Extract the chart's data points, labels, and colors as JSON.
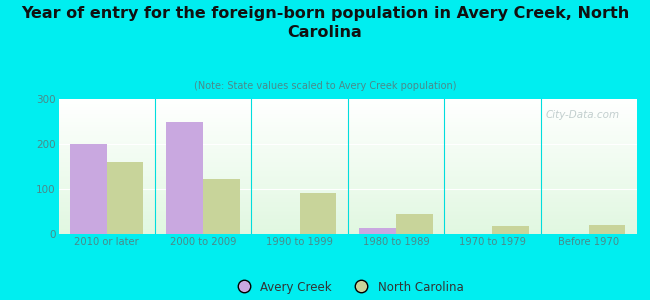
{
  "title": "Year of entry for the foreign-born population in Avery Creek, North\nCarolina",
  "subtitle": "(Note: State values scaled to Avery Creek population)",
  "categories": [
    "2010 or later",
    "2000 to 2009",
    "1990 to 1999",
    "1980 to 1989",
    "1970 to 1979",
    "Before 1970"
  ],
  "avery_creek": [
    200,
    248,
    0,
    13,
    0,
    0
  ],
  "north_carolina": [
    160,
    122,
    92,
    45,
    17,
    20
  ],
  "avery_color": "#c9a8e0",
  "nc_color": "#c8d49a",
  "background_color": "#00eef0",
  "ylim": [
    0,
    300
  ],
  "yticks": [
    0,
    100,
    200,
    300
  ],
  "bar_width": 0.38,
  "watermark": "City-Data.com",
  "legend_avery": "Avery Creek",
  "legend_nc": "North Carolina",
  "title_color": "#111111",
  "subtitle_color": "#4a8a8a",
  "tick_color": "#4a8a8a",
  "divider_color": "#00dddd"
}
